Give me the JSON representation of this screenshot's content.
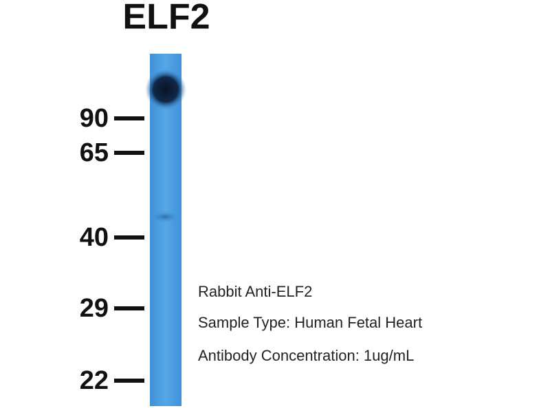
{
  "header": {
    "title": "ELF2"
  },
  "markers": [
    "90",
    "65",
    "40",
    "29",
    "22"
  ],
  "notes": [
    "Rabbit Anti-ELF2",
    "Sample Type: Human Fetal Heart",
    "Antibody Concentration: 1ug/mL"
  ]
}
